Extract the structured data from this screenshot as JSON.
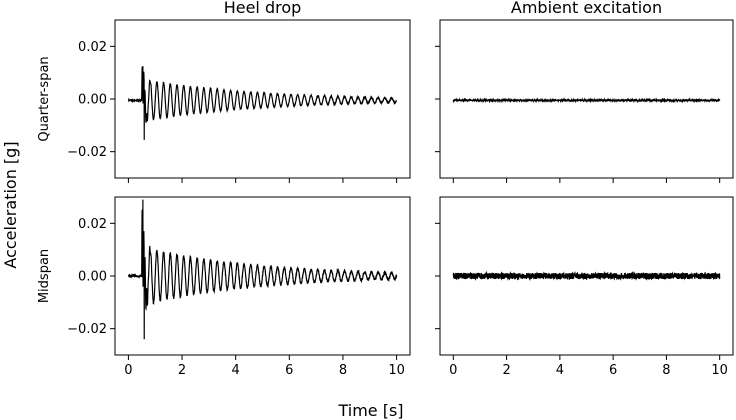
{
  "figure": {
    "supylabel": "Acceleration [g]",
    "supxlabel": "Time [s]"
  },
  "chart_data": {
    "type": "line",
    "layout": "2x2 grid, shared x and y axes",
    "columns": [
      "Heel drop",
      "Ambient excitation"
    ],
    "rows": [
      "Quarter-span",
      "Midspan"
    ],
    "xlabel": "Time [s]",
    "ylabel": "Acceleration [g]",
    "xlim": [
      -0.5,
      10.5
    ],
    "ylim": [
      -0.03,
      0.03
    ],
    "xticks": [
      0,
      2,
      4,
      6,
      8,
      10
    ],
    "yticks": [
      -0.02,
      0.0,
      0.02
    ],
    "xtick_labels": [
      "0",
      "2",
      "4",
      "6",
      "8",
      "10"
    ],
    "ytick_labels": [
      "−0.02",
      "0.00",
      "0.02"
    ],
    "grid": false,
    "line_color": "#000000",
    "panels": [
      {
        "column": "Heel drop",
        "row": "Quarter-span",
        "kind": "impulse",
        "x_start": 0.0,
        "x_end": 10.0,
        "offset": -0.0005,
        "impact_time": 0.5,
        "peak_max": 0.013,
        "peak_min": -0.015,
        "decay_amplitude": 0.008,
        "decay_end_amplitude": 0.0009,
        "oscillation_frequency_hz": 4.0,
        "noise_amplitude": 0.0002
      },
      {
        "column": "Ambient excitation",
        "row": "Quarter-span",
        "kind": "noise",
        "x_start": 0.0,
        "x_end": 10.0,
        "offset": -0.0005,
        "noise_amplitude": 0.0003
      },
      {
        "column": "Heel drop",
        "row": "Midspan",
        "kind": "impulse",
        "x_start": 0.0,
        "x_end": 10.0,
        "offset": 0.0,
        "impact_time": 0.5,
        "peak_max": 0.029,
        "peak_min": -0.024,
        "decay_amplitude": 0.011,
        "decay_end_amplitude": 0.0012,
        "oscillation_frequency_hz": 4.0,
        "noise_amplitude": 0.0005
      },
      {
        "column": "Ambient excitation",
        "row": "Midspan",
        "kind": "noise",
        "x_start": 0.0,
        "x_end": 10.0,
        "offset": 0.0,
        "noise_amplitude": 0.0012
      }
    ]
  }
}
